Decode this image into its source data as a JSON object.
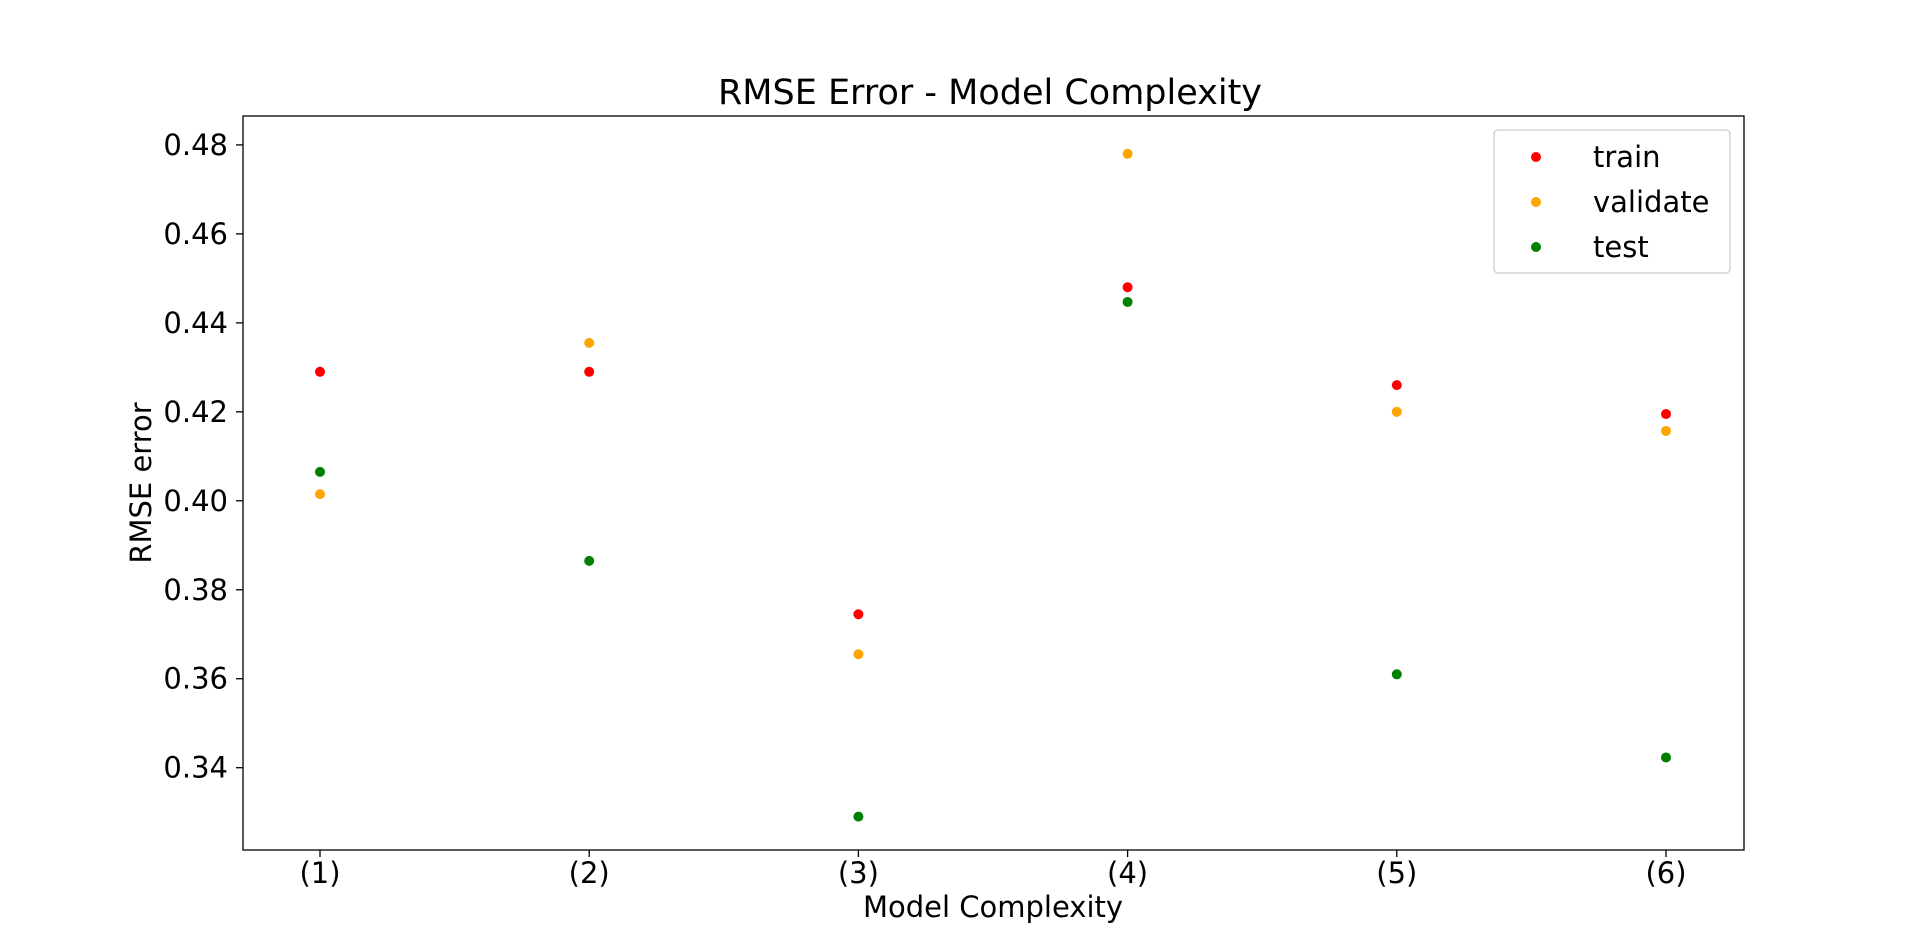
{
  "chart_data": {
    "type": "scatter",
    "title": "RMSE Error - Model Complexity",
    "xlabel": "Model Complexity",
    "ylabel": "RMSE error",
    "categories": [
      "(1)",
      "(2)",
      "(3)",
      "(4)",
      "(5)",
      "(6)"
    ],
    "ylim": [
      0.3215,
      0.4865
    ],
    "yticks": [
      0.34,
      0.36,
      0.38,
      0.4,
      0.42,
      0.44,
      0.46,
      0.48
    ],
    "ytick_labels": [
      "0.34",
      "0.36",
      "0.38",
      "0.40",
      "0.42",
      "0.44",
      "0.46",
      "0.48"
    ],
    "grid": false,
    "legend_position": "top-right",
    "series": [
      {
        "name": "train",
        "color": "#ff0000",
        "values": [
          0.429,
          0.429,
          0.3745,
          0.448,
          0.426,
          0.4195
        ]
      },
      {
        "name": "validate",
        "color": "#ffa500",
        "values": [
          0.4015,
          0.4355,
          0.3655,
          0.478,
          0.42,
          0.4157
        ]
      },
      {
        "name": "test",
        "color": "#008000",
        "values": [
          0.4065,
          0.3865,
          0.329,
          0.4447,
          0.361,
          0.3423
        ]
      }
    ]
  }
}
